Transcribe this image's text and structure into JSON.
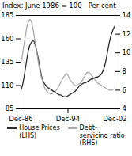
{
  "chart_data": {
    "type": "line",
    "title": "Index: June 1986 = 100   Per cent",
    "categories": [
      "Dec-86",
      null,
      null,
      null,
      null,
      null,
      null,
      null,
      null,
      null,
      null,
      null,
      null,
      null,
      null,
      null,
      null,
      null,
      null,
      null,
      null,
      null,
      null,
      null,
      null,
      null,
      null,
      null,
      null,
      null,
      null,
      null,
      "Dec-94",
      null,
      null,
      null,
      null,
      null,
      null,
      null,
      null,
      null,
      null,
      null,
      null,
      null,
      null,
      null,
      null,
      null,
      null,
      null,
      null,
      null,
      null,
      null,
      null,
      null,
      null,
      null,
      null,
      null,
      null,
      null,
      "Dec-02"
    ],
    "series": [
      {
        "name": "House Prices\n(LHS)",
        "color": "#2a2a2a",
        "values": [
          105,
          110,
          118,
          128,
          138,
          147,
          153,
          156,
          158,
          157,
          152,
          145,
          137,
          128,
          120,
          115,
          112,
          110,
          108,
          107,
          106,
          105,
          104,
          103,
          102,
          101,
          100,
          100,
          99,
          98,
          98,
          98,
          99,
          100,
          101,
          102,
          103,
          104,
          106,
          108,
          110,
          111,
          112,
          113,
          113,
          114,
          115,
          116,
          117,
          117,
          118,
          119,
          119,
          120,
          121,
          123,
          126,
          131,
          138,
          147,
          155,
          162,
          167,
          171,
          174
        ]
      },
      {
        "name": "Debt-\nservicing ratio\n(RHS)",
        "color": "#aaaaaa",
        "axis": "y2",
        "values": [
          9.0,
          9.8,
          10.8,
          11.8,
          12.8,
          13.3,
          13.6,
          13.4,
          12.8,
          11.8,
          10.8,
          9.8,
          8.8,
          8.0,
          7.3,
          6.8,
          6.3,
          6.0,
          5.8,
          5.7,
          5.6,
          5.6,
          5.7,
          5.8,
          6.0,
          6.2,
          6.5,
          6.8,
          7.1,
          7.4,
          7.6,
          7.8,
          7.6,
          7.2,
          7.0,
          6.8,
          6.6,
          6.5,
          6.5,
          6.6,
          6.7,
          6.9,
          7.1,
          7.4,
          7.7,
          7.9,
          7.9,
          7.8,
          7.6,
          7.4,
          7.2,
          7.0,
          6.8,
          6.7,
          6.6,
          6.5,
          6.4,
          6.3,
          6.2,
          6.1,
          6.0,
          6.0,
          6.0,
          6.1,
          6.2
        ]
      }
    ],
    "ylim": [
      85,
      185
    ],
    "yticks": [
      85,
      110,
      135,
      160,
      185
    ],
    "y2lim": [
      4,
      14
    ],
    "y2ticks": [
      4,
      6,
      8,
      10,
      12,
      14
    ],
    "grid": false,
    "legend": "bottom"
  }
}
